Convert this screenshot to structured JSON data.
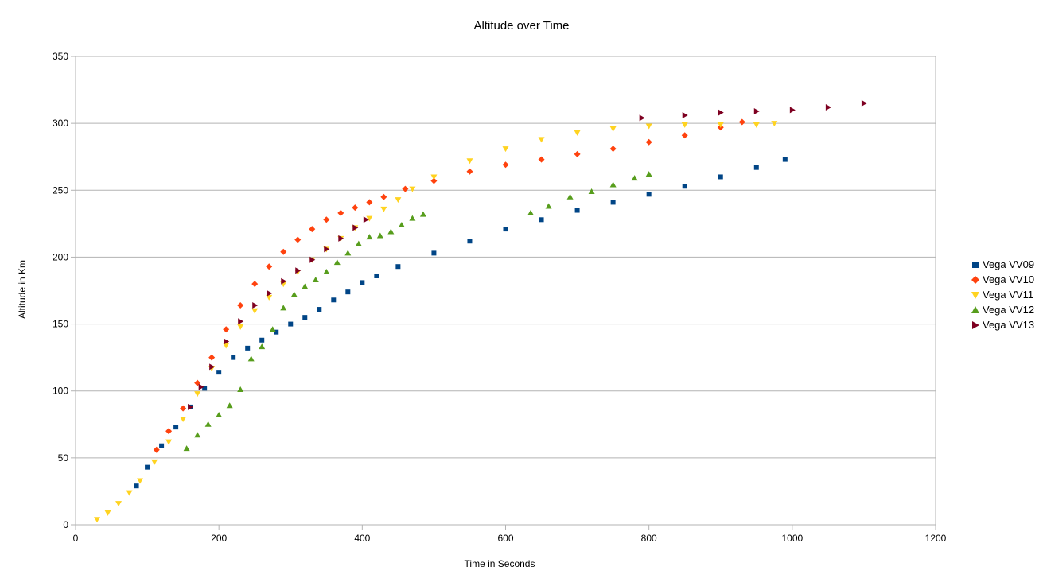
{
  "chart_data": {
    "type": "scatter",
    "title": "Altitude over Time",
    "xlabel": "Time in Seconds",
    "ylabel": "Altitude in Km",
    "xlim": [
      0,
      1200
    ],
    "ylim": [
      0,
      350
    ],
    "xticks": [
      0,
      200,
      400,
      600,
      800,
      1000,
      1200
    ],
    "yticks": [
      0,
      50,
      100,
      150,
      200,
      250,
      300,
      350
    ],
    "x_tick_labels": [
      "0",
      "200",
      "400",
      "600",
      "800",
      "1000",
      "1200"
    ],
    "y_tick_labels": [
      "0",
      "50",
      "100",
      "150",
      "200",
      "250",
      "300",
      "350"
    ],
    "grid": "horizontal",
    "legend_position": "right",
    "series": [
      {
        "name": "Vega VV09",
        "marker": "square",
        "color": "#004586",
        "x": [
          85,
          100,
          120,
          140,
          160,
          180,
          200,
          220,
          240,
          260,
          280,
          300,
          320,
          340,
          360,
          380,
          400,
          420,
          450,
          500,
          550,
          600,
          650,
          700,
          750,
          800,
          850,
          900,
          950,
          990
        ],
        "y": [
          29,
          43,
          59,
          73,
          88,
          102,
          114,
          125,
          132,
          138,
          144,
          150,
          155,
          161,
          168,
          174,
          181,
          186,
          193,
          203,
          212,
          221,
          228,
          235,
          241,
          247,
          253,
          260,
          267,
          273
        ]
      },
      {
        "name": "Vega VV10",
        "marker": "diamond",
        "color": "#ff420e",
        "x": [
          113,
          130,
          150,
          170,
          190,
          210,
          230,
          250,
          270,
          290,
          310,
          330,
          350,
          370,
          390,
          410,
          430,
          460,
          500,
          550,
          600,
          650,
          700,
          750,
          800,
          850,
          900,
          930
        ],
        "y": [
          56,
          70,
          87,
          106,
          125,
          146,
          164,
          180,
          193,
          204,
          213,
          221,
          228,
          233,
          237,
          241,
          245,
          251,
          257,
          264,
          269,
          273,
          277,
          281,
          286,
          291,
          297,
          301
        ]
      },
      {
        "name": "Vega VV11",
        "marker": "triangle-down",
        "color": "#ffd320",
        "x": [
          30,
          45,
          60,
          75,
          90,
          110,
          130,
          150,
          170,
          190,
          210,
          230,
          250,
          270,
          290,
          310,
          330,
          350,
          370,
          390,
          410,
          430,
          450,
          470,
          500,
          550,
          600,
          650,
          700,
          750,
          800,
          850,
          900,
          950,
          975
        ],
        "y": [
          4,
          9,
          16,
          24,
          33,
          47,
          62,
          79,
          98,
          117,
          134,
          148,
          160,
          170,
          180,
          189,
          198,
          206,
          214,
          222,
          229,
          236,
          243,
          251,
          260,
          272,
          281,
          288,
          293,
          296,
          298,
          299,
          299,
          299,
          300
        ]
      },
      {
        "name": "Vega VV12",
        "marker": "triangle-up",
        "color": "#579d1c",
        "x": [
          155,
          170,
          185,
          200,
          215,
          230,
          245,
          260,
          275,
          290,
          305,
          320,
          335,
          350,
          365,
          380,
          395,
          410,
          425,
          440,
          455,
          470,
          485,
          635,
          660,
          690,
          720,
          750,
          780,
          800
        ],
        "y": [
          57,
          67,
          75,
          82,
          89,
          101,
          124,
          133,
          146,
          162,
          172,
          178,
          183,
          189,
          196,
          203,
          210,
          215,
          216,
          219,
          224,
          229,
          232,
          233,
          238,
          245,
          249,
          254,
          259,
          262
        ]
      },
      {
        "name": "Vega VV13",
        "marker": "triangle-right",
        "color": "#7e0021",
        "x": [
          160,
          175,
          190,
          210,
          230,
          250,
          270,
          290,
          310,
          330,
          350,
          370,
          390,
          405,
          790,
          850,
          900,
          950,
          1000,
          1050,
          1100
        ],
        "y": [
          88,
          103,
          118,
          137,
          152,
          164,
          173,
          182,
          190,
          198,
          206,
          214,
          222,
          228,
          304,
          306,
          308,
          309,
          310,
          312,
          315
        ]
      }
    ]
  }
}
